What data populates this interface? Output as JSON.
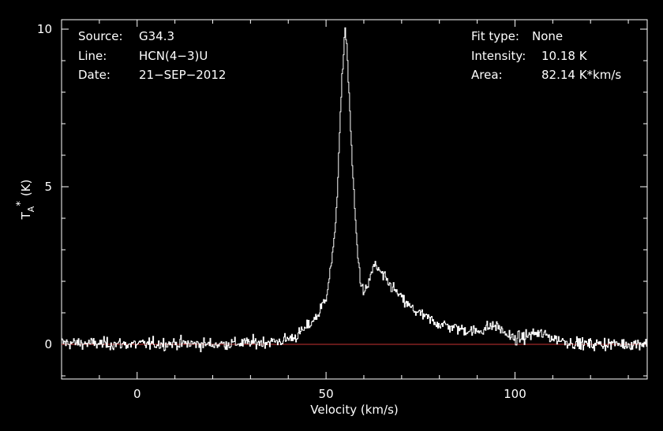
{
  "chart_data": {
    "type": "line",
    "title": "",
    "xlabel": "Velocity (km/s)",
    "ylabel": {
      "main": "T",
      "sub": "A",
      "sup": "*",
      "unit": "(K)"
    },
    "xlim": [
      -20,
      135
    ],
    "ylim": [
      -1.1,
      10.3
    ],
    "xticks": [
      {
        "value": 0,
        "label": "0"
      },
      {
        "value": 50,
        "label": "50"
      },
      {
        "value": 100,
        "label": "100"
      }
    ],
    "yticks": [
      {
        "value": 0,
        "label": "0"
      },
      {
        "value": 5,
        "label": "5"
      },
      {
        "value": 10,
        "label": "10"
      }
    ],
    "grid": false,
    "baseline": {
      "y": 0,
      "color": "#c83232"
    },
    "colors": {
      "background": "#000000",
      "axes": "#ffffff",
      "spectrum": "#ffffff",
      "baseline": "#c83232"
    },
    "info_left": [
      {
        "label": "Source:",
        "value": "G34.3"
      },
      {
        "label": "Line:",
        "value": "HCN(4−3)U"
      },
      {
        "label": "Date:",
        "value": "21−SEP−2012"
      }
    ],
    "info_right": [
      {
        "label": "Fit type:",
        "value": "None"
      },
      {
        "label": "Intensity:",
        "value": "10.18 K"
      },
      {
        "label": "Area:",
        "value": "82.14 K*km/s"
      }
    ],
    "series": [
      {
        "x": [
          -20,
          -10,
          0,
          10,
          20,
          30,
          38,
          42,
          45,
          48,
          50,
          52,
          53,
          54,
          55,
          55.5,
          56,
          57,
          58,
          59,
          60,
          61,
          62,
          63,
          64,
          66,
          68,
          70,
          72,
          75,
          78,
          80,
          85,
          90,
          93,
          95,
          98,
          100,
          103,
          105,
          108,
          110,
          115,
          120,
          125,
          130,
          135
        ],
        "y": [
          0.05,
          0.02,
          0.0,
          0.03,
          0.0,
          0.05,
          0.1,
          0.25,
          0.55,
          0.95,
          1.5,
          3.0,
          4.8,
          7.8,
          10.1,
          9.5,
          8.2,
          5.6,
          3.5,
          2.1,
          1.6,
          1.8,
          2.3,
          2.5,
          2.35,
          2.0,
          1.75,
          1.45,
          1.2,
          0.95,
          0.75,
          0.65,
          0.5,
          0.4,
          0.55,
          0.6,
          0.3,
          0.15,
          0.25,
          0.35,
          0.3,
          0.2,
          0.05,
          0.0,
          0.02,
          0.0,
          0.05
        ]
      }
    ],
    "noise_rms": 0.17
  }
}
